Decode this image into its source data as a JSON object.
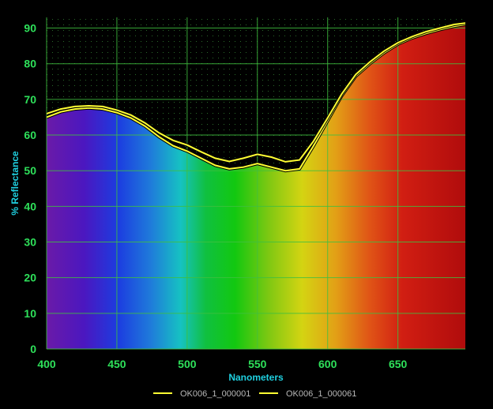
{
  "chart_data": {
    "type": "line",
    "xlabel": "Nanometers",
    "ylabel": "% Reflectance",
    "xlim": [
      400,
      698
    ],
    "ylim": [
      0,
      93
    ],
    "x_ticks": [
      "400",
      "450",
      "500",
      "550",
      "600",
      "650"
    ],
    "y_ticks": [
      "0",
      "10",
      "20",
      "30",
      "40",
      "50",
      "60",
      "70",
      "80",
      "90"
    ],
    "grid": true,
    "legend_position": "bottom",
    "background_fill": "visible-spectrum",
    "colors": {
      "line": "#ffff33",
      "grid": "#3fbf3f",
      "tick_text": "#2ee05a",
      "axis_label": "#1fd0e0",
      "legend_text": "#b8b8b8"
    },
    "x": [
      400,
      410,
      420,
      430,
      440,
      450,
      460,
      470,
      480,
      490,
      500,
      510,
      520,
      530,
      540,
      550,
      560,
      570,
      580,
      590,
      600,
      610,
      620,
      630,
      640,
      650,
      660,
      670,
      680,
      690,
      698
    ],
    "series": [
      {
        "name": "OK006_1_000001",
        "values": [
          65,
          66.5,
          67.3,
          67.6,
          67.3,
          66.3,
          64.8,
          62.5,
          59.5,
          57,
          55.5,
          53.5,
          51.5,
          50.5,
          51,
          52,
          51,
          50,
          50.5,
          57,
          64,
          71,
          76.5,
          80,
          83,
          85.5,
          87.2,
          88.5,
          89.6,
          90.5,
          91
        ]
      },
      {
        "name": "OK006_1_000061",
        "values": [
          66,
          67.3,
          68,
          68.2,
          68,
          67,
          65.6,
          63.4,
          60.6,
          58.5,
          57.2,
          55.3,
          53.5,
          52.6,
          53.5,
          54.6,
          53.8,
          52.5,
          53,
          58.3,
          64.8,
          71.5,
          77,
          80.5,
          83.5,
          85.9,
          87.6,
          89,
          90,
          91,
          91.4
        ]
      }
    ]
  }
}
